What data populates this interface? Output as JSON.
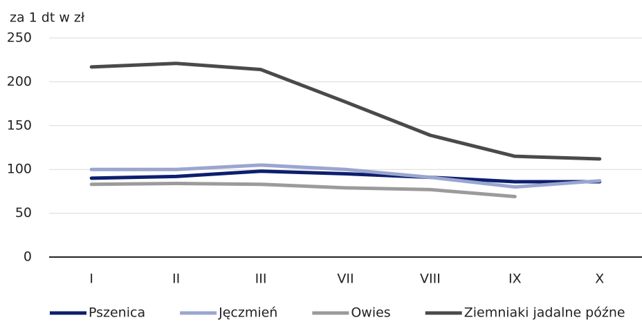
{
  "chart_data": {
    "type": "line",
    "y_axis_label": "za 1 dt w zł",
    "categories": [
      "I",
      "II",
      "III",
      "VII",
      "VIII",
      "IX",
      "X"
    ],
    "series": [
      {
        "name": "Pszenica",
        "color": "#0c1f6e",
        "values": [
          90,
          92,
          98,
          95,
          91,
          86,
          86
        ]
      },
      {
        "name": "Jęczmień",
        "color": "#9aa6cf",
        "values": [
          100,
          100,
          105,
          100,
          91,
          80,
          87
        ]
      },
      {
        "name": "Owies",
        "color": "#9b9b9b",
        "values": [
          83,
          84,
          83,
          79,
          77,
          69,
          null
        ]
      },
      {
        "name": "Ziemniaki jadalne późne",
        "color": "#4a4a4a",
        "values": [
          217,
          221,
          214,
          177,
          139,
          115,
          112
        ]
      }
    ],
    "ylim": [
      0,
      250
    ],
    "yticks": [
      0,
      50,
      100,
      150,
      200,
      250
    ],
    "grid": true,
    "legend": "bottom"
  }
}
